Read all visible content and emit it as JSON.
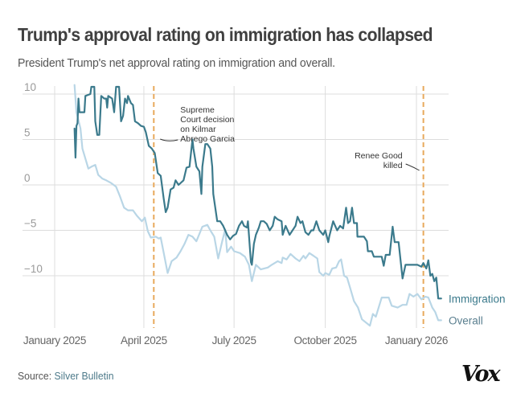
{
  "header": {
    "title": "Trump's approval rating on immigration has collapsed",
    "subtitle": "President Trump's net approval rating on immigration and overall."
  },
  "footer": {
    "source_prefix": "Source: ",
    "source_name": "Silver Bulletin",
    "logo": "Vox"
  },
  "colors": {
    "immigration": "#3b7a8c",
    "overall": "#b9d6e6",
    "overall_label": "#5a7f8f",
    "annotation_line": "#e8a95c",
    "grid": "#dddddd",
    "tick_label": "#9a9a9a"
  },
  "chart_data": {
    "type": "line",
    "title": "Trump's approval rating on immigration has collapsed",
    "subtitle": "President Trump's net approval rating on immigration and overall.",
    "xlabel": "",
    "ylabel": "",
    "x_unit": "days since January 1, 2025",
    "xlim": [
      0,
      400
    ],
    "ylim": [
      -15.5,
      11
    ],
    "grid": true,
    "legend": "direct labels at line ends (right)",
    "y_ticks": [
      {
        "value": 10,
        "label": "10"
      },
      {
        "value": 5,
        "label": "5"
      },
      {
        "value": 0,
        "label": "0"
      },
      {
        "value": -5,
        "label": "−5"
      },
      {
        "value": -10,
        "label": "−10"
      }
    ],
    "x_ticks": [
      {
        "value": 0,
        "label": "January 2025"
      },
      {
        "value": 90,
        "label": "April 2025"
      },
      {
        "value": 181,
        "label": "July 2025"
      },
      {
        "value": 273,
        "label": "October 2025"
      },
      {
        "value": 365,
        "label": "January 2026"
      }
    ],
    "annotations": [
      {
        "x": 100,
        "label_lines": [
          "Supreme",
          "Court decision",
          "on Kilmar",
          "Abrego Garcia"
        ],
        "align": "left"
      },
      {
        "x": 372,
        "label_lines": [
          "Renee Good",
          "killed"
        ],
        "align": "right"
      }
    ],
    "series": [
      {
        "name": "Immigration",
        "label": "Immigration",
        "points": [
          [
            20,
            6.2
          ],
          [
            21,
            3.0
          ],
          [
            22,
            6.5
          ],
          [
            23,
            6.8
          ],
          [
            24,
            9.5
          ],
          [
            25,
            8.0
          ],
          [
            29,
            8.0
          ],
          [
            30,
            8.0
          ],
          [
            31,
            9.8
          ],
          [
            36,
            10.0
          ],
          [
            37,
            10.8
          ],
          [
            40,
            10.8
          ],
          [
            41,
            7.0
          ],
          [
            43,
            5.5
          ],
          [
            45,
            5.5
          ],
          [
            47,
            9.8
          ],
          [
            50,
            9.5
          ],
          [
            52,
            9.5
          ],
          [
            53,
            8.5
          ],
          [
            54,
            9.8
          ],
          [
            58,
            9.5
          ],
          [
            60,
            8.0
          ],
          [
            62,
            10.8
          ],
          [
            65,
            10.8
          ],
          [
            67,
            7.0
          ],
          [
            69,
            7.6
          ],
          [
            71,
            9.5
          ],
          [
            73,
            9.0
          ],
          [
            74,
            9.8
          ],
          [
            77,
            9.0
          ],
          [
            79,
            8.8
          ],
          [
            81,
            7.0
          ],
          [
            84,
            6.8
          ],
          [
            87,
            6.5
          ],
          [
            90,
            6.4
          ],
          [
            92,
            5.8
          ],
          [
            95,
            4.3
          ],
          [
            98,
            4.0
          ],
          [
            101,
            3.5
          ],
          [
            104,
            1.3
          ],
          [
            107,
            1.0
          ],
          [
            110,
            -1.5
          ],
          [
            112,
            -3.0
          ],
          [
            114,
            -2.5
          ],
          [
            117,
            -0.5
          ],
          [
            120,
            -0.3
          ],
          [
            122,
            0.5
          ],
          [
            125,
            0.0
          ],
          [
            130,
            0.5
          ],
          [
            133,
            1.9
          ],
          [
            136,
            2.0
          ],
          [
            139,
            5.0
          ],
          [
            140,
            4.0
          ],
          [
            143,
            2.0
          ],
          [
            146,
            1.5
          ],
          [
            148,
            -1.0
          ],
          [
            149,
            2.0
          ],
          [
            152,
            4.5
          ],
          [
            154,
            4.5
          ],
          [
            157,
            4.0
          ],
          [
            159,
            2.0
          ],
          [
            160,
            -1.0
          ],
          [
            164,
            -4.0
          ],
          [
            167,
            -4.0
          ],
          [
            170,
            -4.5
          ],
          [
            174,
            -5.5
          ],
          [
            177,
            -6.0
          ],
          [
            180,
            -5.6
          ],
          [
            183,
            -5.4
          ],
          [
            186,
            -4.5
          ],
          [
            189,
            -4.0
          ],
          [
            191,
            -4.5
          ],
          [
            194,
            -4.7
          ],
          [
            195,
            -4.0
          ],
          [
            198,
            -8.5
          ],
          [
            199,
            -8.8
          ],
          [
            201,
            -6.5
          ],
          [
            203,
            -5.5
          ],
          [
            206,
            -4.7
          ],
          [
            208,
            -4.0
          ],
          [
            211,
            -4.0
          ],
          [
            214,
            -4.3
          ],
          [
            217,
            -5.0
          ],
          [
            220,
            -4.5
          ],
          [
            222,
            -3.5
          ],
          [
            225,
            -3.8
          ],
          [
            229,
            -4.0
          ],
          [
            230,
            -5.5
          ],
          [
            233,
            -4.5
          ],
          [
            237,
            -5.5
          ],
          [
            240,
            -5.0
          ],
          [
            243,
            -4.5
          ],
          [
            245,
            -3.5
          ],
          [
            248,
            -4.2
          ],
          [
            250,
            -4.0
          ],
          [
            253,
            -5.2
          ],
          [
            256,
            -5.5
          ],
          [
            259,
            -5.0
          ],
          [
            261,
            -5.0
          ],
          [
            264,
            -4.0
          ],
          [
            267,
            -5.0
          ],
          [
            271,
            -5.5
          ],
          [
            273,
            -5.0
          ],
          [
            276,
            -6.3
          ],
          [
            277,
            -5.7
          ],
          [
            281,
            -4.0
          ],
          [
            283,
            -4.5
          ],
          [
            285,
            -5.0
          ],
          [
            288,
            -4.5
          ],
          [
            291,
            -4.8
          ],
          [
            294,
            -2.5
          ],
          [
            296,
            -4.2
          ],
          [
            298,
            -4.0
          ],
          [
            300,
            -2.5
          ],
          [
            302,
            -4.2
          ],
          [
            305,
            -4.2
          ],
          [
            305.5,
            -5.7
          ],
          [
            312,
            -5.7
          ],
          [
            315,
            -6.2
          ],
          [
            316,
            -7.3
          ],
          [
            320,
            -7.3
          ],
          [
            322,
            -7.9
          ],
          [
            330,
            -7.9
          ],
          [
            332,
            -8.9
          ],
          [
            334,
            -7.7
          ],
          [
            338,
            -7.7
          ],
          [
            341,
            -4.6
          ],
          [
            343,
            -6.3
          ],
          [
            347,
            -6.3
          ],
          [
            351,
            -10.3
          ],
          [
            354,
            -8.8
          ],
          [
            366,
            -8.8
          ],
          [
            370,
            -9.0
          ],
          [
            372,
            -8.6
          ],
          [
            375,
            -9.2
          ],
          [
            377,
            -8.3
          ],
          [
            379,
            -10.0
          ],
          [
            381,
            -9.8
          ],
          [
            383,
            -10.6
          ],
          [
            385,
            -10.2
          ],
          [
            387,
            -12.5
          ],
          [
            390,
            -12.5
          ]
        ]
      },
      {
        "name": "Overall",
        "label": "Overall",
        "points": [
          [
            20,
            11.0
          ],
          [
            22,
            8.0
          ],
          [
            26,
            6.2
          ],
          [
            28,
            4.0
          ],
          [
            34,
            1.8
          ],
          [
            37,
            2.0
          ],
          [
            41,
            2.2
          ],
          [
            44,
            1.1
          ],
          [
            48,
            0.7
          ],
          [
            52,
            0.5
          ],
          [
            57,
            0.2
          ],
          [
            62,
            -0.2
          ],
          [
            66,
            -1.3
          ],
          [
            70,
            -2.5
          ],
          [
            74,
            -2.8
          ],
          [
            79,
            -2.8
          ],
          [
            83,
            -3.4
          ],
          [
            88,
            -4.0
          ],
          [
            91,
            -3.6
          ],
          [
            94,
            -5.1
          ],
          [
            97,
            -5.8
          ],
          [
            102,
            -5.7
          ],
          [
            105,
            -5.9
          ],
          [
            107,
            -5.8
          ],
          [
            111,
            -8.0
          ],
          [
            114,
            -9.7
          ],
          [
            118,
            -8.4
          ],
          [
            123,
            -8.0
          ],
          [
            127,
            -7.3
          ],
          [
            131,
            -6.5
          ],
          [
            135,
            -5.5
          ],
          [
            139,
            -5.7
          ],
          [
            143,
            -6.2
          ],
          [
            149,
            -4.6
          ],
          [
            154,
            -4.4
          ],
          [
            157,
            -5.0
          ],
          [
            161,
            -5.7
          ],
          [
            165,
            -8.1
          ],
          [
            169,
            -6.2
          ],
          [
            172,
            -4.9
          ],
          [
            174,
            -7.4
          ],
          [
            178,
            -6.8
          ],
          [
            181,
            -7.3
          ],
          [
            187,
            -7.5
          ],
          [
            192,
            -7.9
          ],
          [
            196,
            -8.8
          ],
          [
            199,
            -10.6
          ],
          [
            203,
            -8.8
          ],
          [
            208,
            -9.3
          ],
          [
            215,
            -9.1
          ],
          [
            219,
            -8.8
          ],
          [
            225,
            -8.4
          ],
          [
            229,
            -8.6
          ],
          [
            230,
            -8.0
          ],
          [
            234,
            -8.2
          ],
          [
            238,
            -7.6
          ],
          [
            243,
            -8.1
          ],
          [
            247,
            -8.4
          ],
          [
            251,
            -7.8
          ],
          [
            253,
            -8.1
          ],
          [
            257,
            -7.5
          ],
          [
            261,
            -7.8
          ],
          [
            265,
            -8.1
          ],
          [
            267,
            -9.6
          ],
          [
            271,
            -10.0
          ],
          [
            273,
            -9.7
          ],
          [
            277,
            -9.9
          ],
          [
            280,
            -9.2
          ],
          [
            284,
            -9.1
          ],
          [
            287,
            -8.4
          ],
          [
            289,
            -8.2
          ],
          [
            292,
            -10.0
          ],
          [
            295,
            -10.2
          ],
          [
            298,
            -11.3
          ],
          [
            302,
            -12.8
          ],
          [
            306,
            -13.5
          ],
          [
            310,
            -14.8
          ],
          [
            318,
            -15.5
          ],
          [
            321,
            -14.2
          ],
          [
            324,
            -14.5
          ],
          [
            330,
            -12.4
          ],
          [
            337,
            -12.4
          ],
          [
            340,
            -13.3
          ],
          [
            346,
            -13.5
          ],
          [
            351,
            -13.2
          ],
          [
            355,
            -13.2
          ],
          [
            358,
            -12.0
          ],
          [
            362,
            -12.3
          ],
          [
            366,
            -12.0
          ],
          [
            370,
            -12.6
          ],
          [
            374,
            -12.3
          ],
          [
            377,
            -12.4
          ],
          [
            381,
            -13.5
          ],
          [
            384,
            -14.0
          ],
          [
            387,
            -14.9
          ],
          [
            390,
            -14.9
          ]
        ]
      }
    ]
  }
}
